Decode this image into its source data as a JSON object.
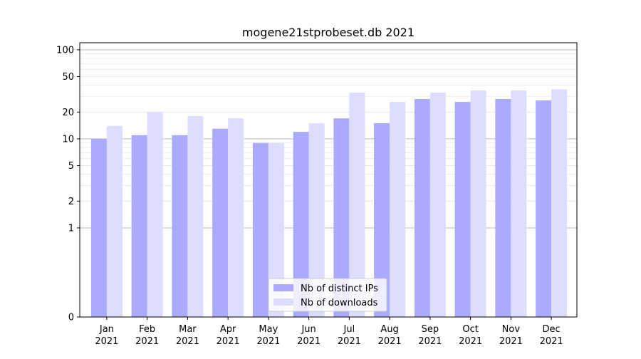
{
  "chart_data": {
    "type": "bar",
    "title": "mogene21stprobeset.db 2021",
    "xlabel": "",
    "ylabel": "",
    "y_scale": "symlog",
    "y_ticks": [
      0,
      1,
      2,
      5,
      10,
      20,
      50,
      100
    ],
    "ylim": [
      0,
      120
    ],
    "grid": true,
    "legend_position": "bottom-center",
    "categories": [
      "Jan\n2021",
      "Feb\n2021",
      "Mar\n2021",
      "Apr\n2021",
      "May\n2021",
      "Jun\n2021",
      "Jul\n2021",
      "Aug\n2021",
      "Sep\n2021",
      "Oct\n2021",
      "Nov\n2021",
      "Dec\n2021"
    ],
    "series": [
      {
        "name": "Nb of distinct IPs",
        "color": "#aaaaff",
        "values": [
          10,
          11,
          11,
          13,
          9,
          12,
          17,
          15,
          28,
          26,
          28,
          27
        ]
      },
      {
        "name": "Nb of downloads",
        "color": "#ddddff",
        "values": [
          14,
          20,
          18,
          17,
          9,
          15,
          33,
          26,
          33,
          35,
          35,
          36
        ]
      }
    ]
  }
}
